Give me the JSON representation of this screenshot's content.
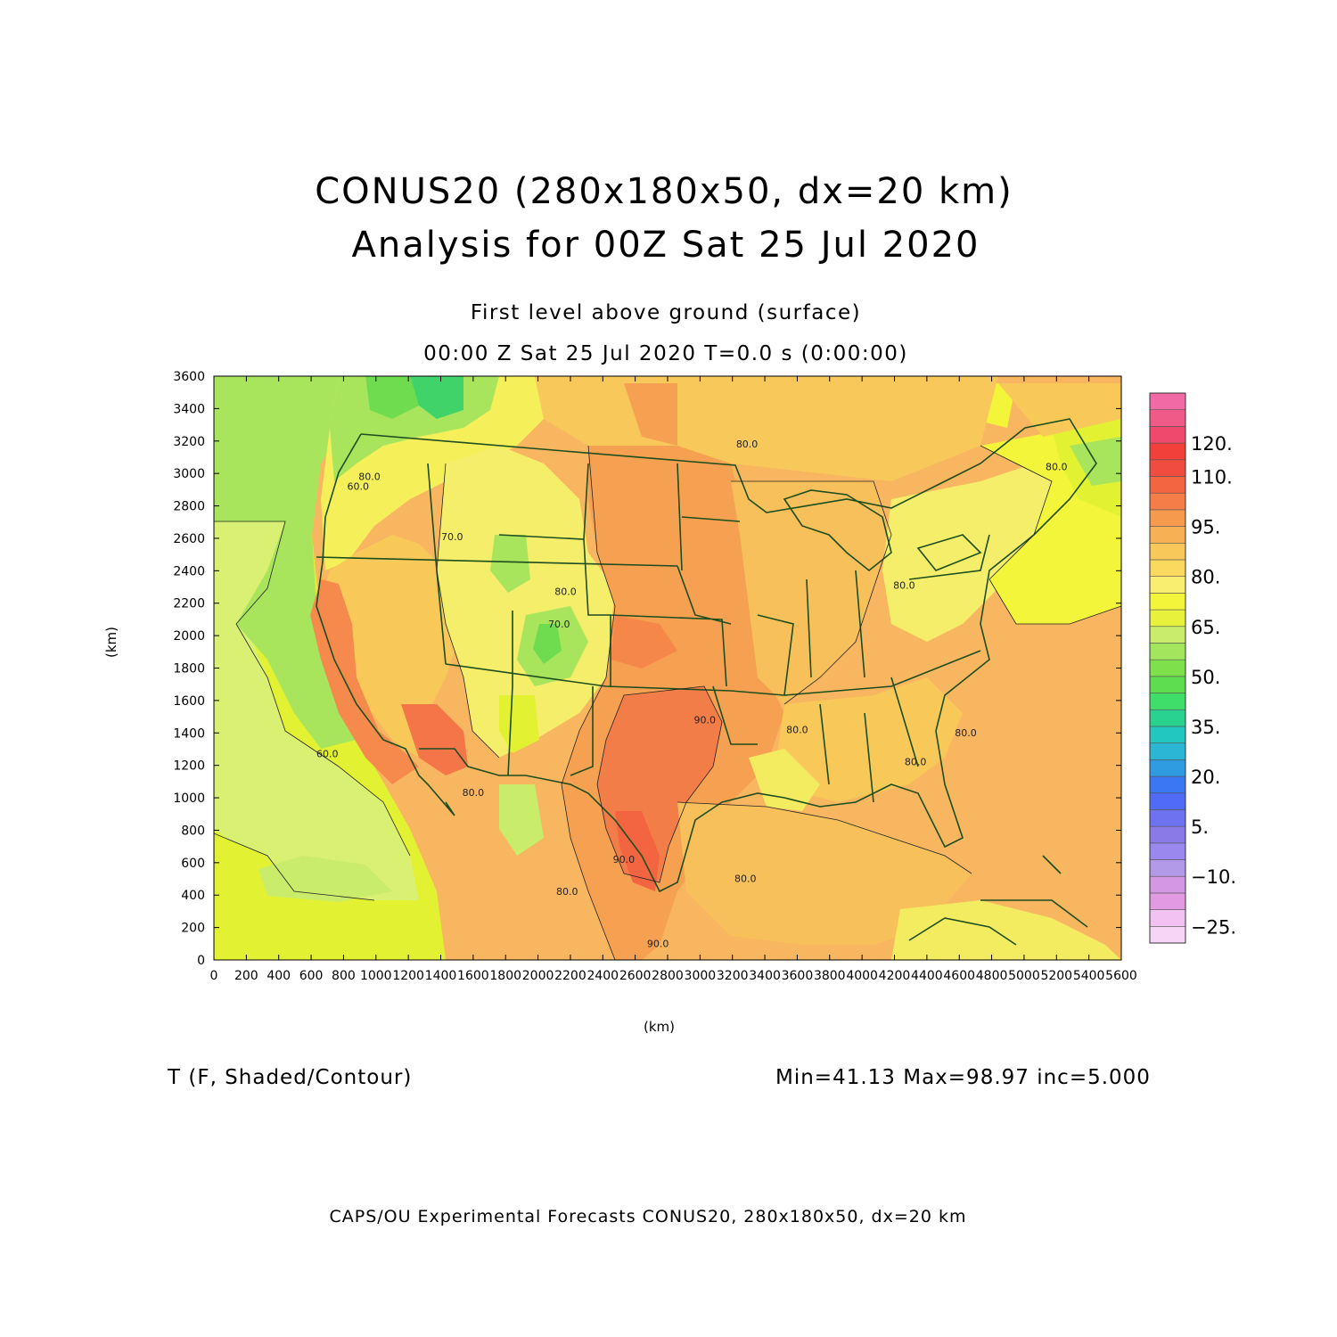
{
  "header": {
    "title_line1": "CONUS20 (280x180x50, dx=20 km)",
    "title_line2": "Analysis for 00Z Sat 25 Jul 2020",
    "subtitle_level": "First level above ground (surface)",
    "subtitle_time": "00:00 Z Sat 25 Jul 2020    T=0.0 s (0:00:00)"
  },
  "axes": {
    "x_unit": "(km)",
    "y_unit": "(km)",
    "x_ticks": [
      "0",
      "200",
      "400",
      "600",
      "800",
      "1000",
      "1200",
      "1400",
      "1600",
      "1800",
      "2000",
      "2200",
      "2400",
      "2600",
      "2800",
      "3000",
      "3200",
      "3400",
      "3600",
      "3800",
      "4000",
      "4200",
      "4400",
      "4600",
      "4800",
      "5000",
      "5200",
      "5400",
      "5600"
    ],
    "y_ticks": [
      "0",
      "200",
      "400",
      "600",
      "800",
      "1000",
      "1200",
      "1400",
      "1600",
      "1800",
      "2000",
      "2200",
      "2400",
      "2600",
      "2800",
      "3000",
      "3200",
      "3400",
      "3600"
    ],
    "x_range_km": [
      0,
      5600
    ],
    "y_range_km": [
      0,
      3600
    ]
  },
  "field": {
    "name": "T (F, Shaded/Contour)",
    "stats": "Min=41.13 Max=98.97 inc=5.000"
  },
  "contour_labels": [
    {
      "text": "80.0",
      "x_km": 3290,
      "y_km": 3160
    },
    {
      "text": "80.0",
      "x_km": 960,
      "y_km": 2960
    },
    {
      "text": "70.0",
      "x_km": 1470,
      "y_km": 2590
    },
    {
      "text": "80.0",
      "x_km": 2170,
      "y_km": 2250
    },
    {
      "text": "70.0",
      "x_km": 2130,
      "y_km": 2050
    },
    {
      "text": "80.0",
      "x_km": 4260,
      "y_km": 2290
    },
    {
      "text": "60.0",
      "x_km": 700,
      "y_km": 1250
    },
    {
      "text": "90.0",
      "x_km": 3030,
      "y_km": 1460
    },
    {
      "text": "80.0",
      "x_km": 3600,
      "y_km": 1400
    },
    {
      "text": "80.0",
      "x_km": 4330,
      "y_km": 1200
    },
    {
      "text": "80.0",
      "x_km": 4640,
      "y_km": 1380
    },
    {
      "text": "80.0",
      "x_km": 1600,
      "y_km": 1010
    },
    {
      "text": "90.0",
      "x_km": 2530,
      "y_km": 600
    },
    {
      "text": "80.0",
      "x_km": 2180,
      "y_km": 400
    },
    {
      "text": "80.0",
      "x_km": 3280,
      "y_km": 480
    },
    {
      "text": "90.0",
      "x_km": 2740,
      "y_km": 80
    },
    {
      "text": "80.0",
      "x_km": 5200,
      "y_km": 3020
    },
    {
      "text": "60.0",
      "x_km": 890,
      "y_km": 2900
    }
  ],
  "colorbar": {
    "labels": [
      {
        "text": "120.",
        "value": 120
      },
      {
        "text": "110.",
        "value": 110
      },
      {
        "text": "95.",
        "value": 95
      },
      {
        "text": "80.",
        "value": 80
      },
      {
        "text": "65.",
        "value": 65
      },
      {
        "text": "50.",
        "value": 50
      },
      {
        "text": "35.",
        "value": 35
      },
      {
        "text": "20.",
        "value": 20
      },
      {
        "text": "5.",
        "value": 5
      },
      {
        "text": "−10.",
        "value": -10
      },
      {
        "text": "−25.",
        "value": -25
      }
    ],
    "colors": [
      "#f7d5f7",
      "#f2c3f2",
      "#e29ae2",
      "#d397e3",
      "#b39ae8",
      "#9a88ee",
      "#8a7ae8",
      "#6f72f0",
      "#4f6bf7",
      "#3977f3",
      "#2f9be0",
      "#2bb6d6",
      "#22c8c0",
      "#29d38f",
      "#3fdd6a",
      "#5edd50",
      "#7ee04b",
      "#a4e55e",
      "#c9ec6a",
      "#e8f23d",
      "#f3f53a",
      "#f9ee70",
      "#fbd85e",
      "#f9c85a",
      "#f8b054",
      "#f69a4e",
      "#f47d48",
      "#f36440",
      "#f04c3f",
      "#f13f3a",
      "#ef4a6e",
      "#f05a88",
      "#f26aa5"
    ]
  },
  "footer": {
    "text": "CAPS/OU Experimental Forecasts  CONUS20, 280x180x50, dx=20 km"
  }
}
